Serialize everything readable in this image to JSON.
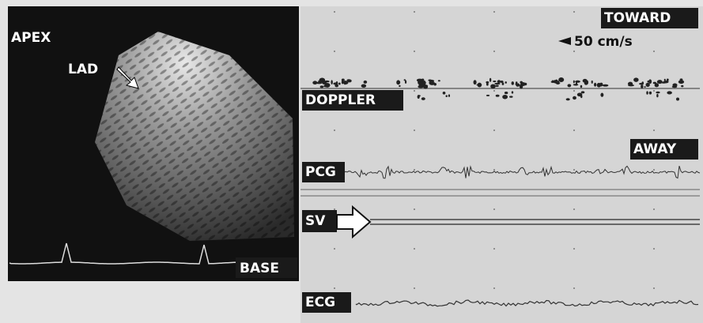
{
  "echo_panel": {
    "apex_label": "APEX",
    "vessel_label": "LAD",
    "base_label": "BASE"
  },
  "doppler_panel": {
    "toward_label": "TOWARD",
    "scale_label": "50 cm/s",
    "doppler_label": "DOPPLER",
    "away_label": "AWAY",
    "pcg_label": "PCG",
    "sv_label": "SV",
    "ecg_label": "ECG"
  }
}
